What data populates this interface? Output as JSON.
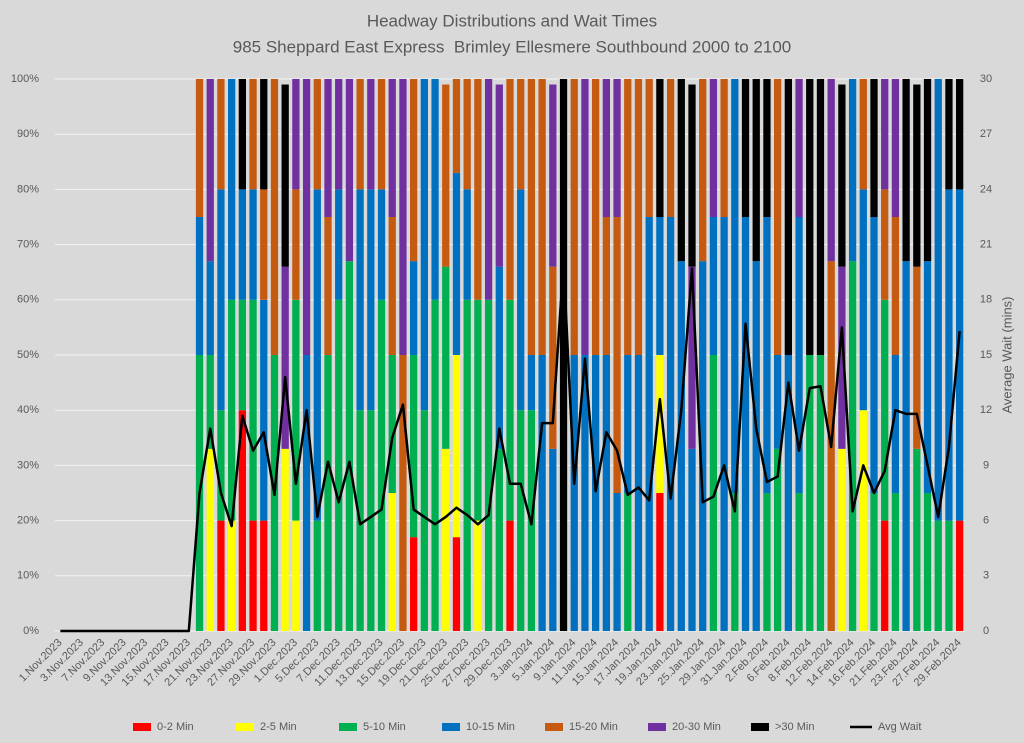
{
  "chart_data": {
    "type": "bar",
    "stacked": true,
    "title": "Headway Distributions and Wait Times",
    "subtitle": "985 Sheppard East Express  Brimley Ellesmere Southbound 2000 to 2100",
    "y2label": "Average Wait (mins)",
    "categories": [
      "1.Nov.2023",
      null,
      "3.Nov.2023",
      null,
      "7.Nov.2023",
      null,
      "9.Nov.2023",
      null,
      "13.Nov.2023",
      null,
      "15.Nov.2023",
      null,
      "17.Nov.2023",
      null,
      "21.Nov.2023",
      null,
      "23.Nov.2023",
      null,
      "27.Nov.2023",
      null,
      "29.Nov.2023",
      null,
      "1.Dec.2023",
      null,
      "5.Dec.2023",
      null,
      "7.Dec.2023",
      null,
      "11.Dec.2023",
      null,
      "13.Dec.2023",
      null,
      "15.Dec.2023",
      null,
      "19.Dec.2023",
      null,
      "21.Dec.2023",
      null,
      "25.Dec.2023",
      null,
      "27.Dec.2023",
      null,
      "29.Dec.2023",
      null,
      "3.Jan.2024",
      null,
      "5.Jan.2024",
      null,
      "9.Jan.2024",
      null,
      "11.Jan.2024",
      null,
      "15.Jan.2024",
      null,
      "17.Jan.2024",
      null,
      "19.Jan.2024",
      null,
      "23.Jan.2024",
      null,
      "25.Jan.2024",
      null,
      "29.Jan.2024",
      null,
      "31.Jan.2024",
      null,
      "2.Feb.2024",
      null,
      "6.Feb.2024",
      null,
      "8.Feb.2024",
      null,
      "12.Feb.2024",
      null,
      "14.Feb.2024",
      null,
      "16.Feb.2024",
      null,
      "21.Feb.2024",
      null,
      "23.Feb.2024",
      null,
      "27.Feb.2024",
      null,
      "29.Feb.2024"
    ],
    "series": [
      {
        "name": "0-2 Min",
        "color": "#ff0000",
        "values": [
          null,
          null,
          null,
          null,
          null,
          null,
          null,
          null,
          null,
          null,
          null,
          null,
          null,
          0,
          0,
          20,
          0,
          40,
          20,
          20,
          0,
          0,
          0,
          0,
          0,
          0,
          0,
          0,
          0,
          0,
          0,
          0,
          0,
          17,
          0,
          0,
          0,
          17,
          0,
          0,
          0,
          0,
          20,
          0,
          0,
          0,
          0,
          0,
          0,
          0,
          0,
          0,
          0,
          0,
          0,
          0,
          25,
          0,
          0,
          0,
          0,
          0,
          0,
          0,
          0,
          0,
          0,
          0,
          0,
          0,
          0,
          0,
          0,
          0,
          0,
          0,
          0,
          20,
          0,
          0,
          0,
          0,
          0,
          0,
          20
        ]
      },
      {
        "name": "2-5 Min",
        "color": "#ffff00",
        "values": [
          null,
          null,
          null,
          null,
          null,
          null,
          null,
          null,
          null,
          null,
          null,
          null,
          null,
          0,
          33,
          0,
          20,
          0,
          0,
          0,
          0,
          33,
          20,
          0,
          0,
          0,
          0,
          0,
          0,
          0,
          0,
          25,
          0,
          0,
          0,
          0,
          33,
          33,
          0,
          20,
          0,
          0,
          0,
          0,
          0,
          0,
          0,
          0,
          0,
          0,
          0,
          0,
          0,
          0,
          0,
          0,
          25,
          0,
          0,
          0,
          0,
          0,
          0,
          0,
          0,
          0,
          0,
          0,
          0,
          0,
          0,
          0,
          0,
          33,
          0,
          40,
          0,
          0,
          0,
          0,
          0,
          0,
          0,
          0,
          0
        ]
      },
      {
        "name": "5-10 Min",
        "color": "#00b050",
        "values": [
          null,
          null,
          null,
          null,
          null,
          null,
          null,
          null,
          null,
          null,
          null,
          null,
          null,
          50,
          17,
          20,
          40,
          20,
          40,
          0,
          50,
          0,
          40,
          0,
          20,
          50,
          60,
          67,
          40,
          40,
          60,
          25,
          0,
          33,
          40,
          60,
          33,
          0,
          60,
          40,
          60,
          33,
          40,
          40,
          40,
          0,
          0,
          0,
          0,
          0,
          0,
          0,
          0,
          25,
          0,
          0,
          0,
          0,
          0,
          0,
          0,
          50,
          0,
          25,
          0,
          0,
          25,
          33,
          0,
          25,
          50,
          50,
          0,
          0,
          67,
          0,
          25,
          40,
          25,
          0,
          33,
          25,
          20,
          20,
          0
        ]
      },
      {
        "name": "10-15 Min",
        "color": "#0070c0",
        "values": [
          null,
          null,
          null,
          null,
          null,
          null,
          null,
          null,
          null,
          null,
          null,
          null,
          null,
          25,
          17,
          40,
          40,
          20,
          20,
          40,
          0,
          0,
          0,
          50,
          60,
          0,
          20,
          0,
          40,
          40,
          20,
          0,
          0,
          17,
          60,
          40,
          0,
          33,
          20,
          0,
          0,
          33,
          0,
          40,
          10,
          50,
          33,
          0,
          50,
          50,
          50,
          50,
          25,
          25,
          50,
          75,
          25,
          75,
          67,
          33,
          67,
          25,
          75,
          75,
          75,
          67,
          50,
          17,
          50,
          50,
          0,
          0,
          0,
          0,
          33,
          40,
          50,
          0,
          25,
          67,
          0,
          42,
          80,
          60,
          60
        ]
      },
      {
        "name": "15-20 Min",
        "color": "#c55a11",
        "values": [
          null,
          null,
          null,
          null,
          null,
          null,
          null,
          null,
          null,
          null,
          null,
          null,
          null,
          25,
          0,
          20,
          0,
          0,
          20,
          20,
          50,
          0,
          20,
          0,
          20,
          25,
          0,
          0,
          20,
          0,
          20,
          25,
          50,
          33,
          0,
          0,
          33,
          17,
          20,
          40,
          0,
          0,
          40,
          20,
          50,
          50,
          33,
          0,
          50,
          0,
          50,
          25,
          50,
          50,
          50,
          25,
          0,
          25,
          0,
          0,
          33,
          0,
          25,
          0,
          0,
          0,
          0,
          50,
          0,
          0,
          0,
          0,
          67,
          0,
          0,
          20,
          0,
          20,
          25,
          0,
          33,
          0,
          0,
          0,
          0
        ]
      },
      {
        "name": "20-30 Min",
        "color": "#7030a0",
        "values": [
          null,
          null,
          null,
          null,
          null,
          null,
          null,
          null,
          null,
          null,
          null,
          null,
          null,
          0,
          33,
          0,
          0,
          0,
          0,
          0,
          0,
          33,
          20,
          50,
          0,
          25,
          20,
          33,
          0,
          20,
          0,
          25,
          50,
          0,
          0,
          0,
          0,
          0,
          0,
          0,
          40,
          33,
          0,
          0,
          0,
          0,
          33,
          0,
          0,
          50,
          0,
          25,
          25,
          0,
          0,
          0,
          0,
          0,
          0,
          33,
          0,
          25,
          0,
          0,
          0,
          0,
          0,
          0,
          0,
          25,
          0,
          0,
          33,
          33,
          0,
          0,
          0,
          20,
          25,
          0,
          0,
          0,
          0,
          0,
          0
        ]
      },
      {
        "name": ">30 Min",
        "color": "#000000",
        "values": [
          null,
          null,
          null,
          null,
          null,
          null,
          null,
          null,
          null,
          null,
          null,
          null,
          null,
          0,
          0,
          0,
          0,
          20,
          0,
          20,
          0,
          33,
          0,
          0,
          0,
          0,
          0,
          0,
          0,
          0,
          0,
          0,
          0,
          0,
          0,
          0,
          0,
          0,
          0,
          0,
          0,
          0,
          0,
          0,
          0,
          0,
          0,
          100,
          0,
          0,
          0,
          0,
          0,
          0,
          0,
          0,
          25,
          0,
          33,
          33,
          0,
          0,
          0,
          0,
          25,
          33,
          25,
          0,
          50,
          0,
          50,
          50,
          0,
          33,
          0,
          0,
          25,
          0,
          0,
          33,
          33,
          33,
          0,
          20,
          20
        ]
      },
      {
        "name": "Avg Wait",
        "color": "#000000",
        "type": "line",
        "axis": "y2",
        "values": [
          0,
          0,
          0,
          0,
          0,
          0,
          0,
          0,
          0,
          0,
          0,
          0,
          0,
          7.5,
          11,
          7.5,
          5.7,
          11.7,
          9.8,
          10.8,
          7.4,
          13.8,
          8,
          12,
          6.2,
          9.2,
          7,
          9.2,
          5.8,
          6.2,
          6.6,
          10.5,
          12.3,
          6.6,
          6.2,
          5.8,
          6.2,
          6.7,
          6.3,
          5.8,
          6.3,
          11,
          8,
          8,
          5.8,
          11.3,
          11.3,
          20,
          8,
          14.8,
          7.6,
          10.8,
          9.8,
          7.4,
          7.8,
          7.1,
          12.6,
          7.2,
          12,
          19.7,
          7,
          7.3,
          9,
          6.5,
          16.7,
          11,
          8.1,
          8.4,
          13.5,
          9.8,
          13.2,
          13.3,
          10,
          16.5,
          6.5,
          9,
          7.5,
          8.7,
          12,
          11.8,
          11.8,
          9,
          6.2,
          10,
          16.3
        ]
      }
    ],
    "ylim": [
      0,
      100
    ],
    "yticks": [
      {
        "value": 0,
        "label": "0%"
      },
      {
        "value": 10,
        "label": "10%"
      },
      {
        "value": 20,
        "label": "20%"
      },
      {
        "value": 30,
        "label": "30%"
      },
      {
        "value": 40,
        "label": "40%"
      },
      {
        "value": 50,
        "label": "50%"
      },
      {
        "value": 60,
        "label": "60%"
      },
      {
        "value": 70,
        "label": "70%"
      },
      {
        "value": 80,
        "label": "80%"
      },
      {
        "value": 90,
        "label": "90%"
      },
      {
        "value": 100,
        "label": "100%"
      }
    ],
    "y2lim": [
      0,
      30
    ],
    "y2ticks": [
      0,
      3,
      6,
      9,
      12,
      15,
      18,
      21,
      24,
      27,
      30
    ],
    "grid": true,
    "legend": "bottom"
  }
}
